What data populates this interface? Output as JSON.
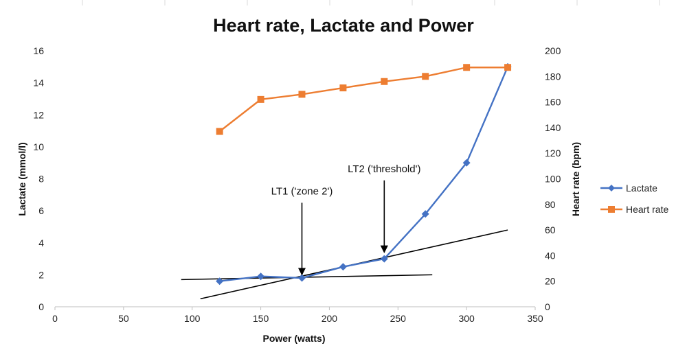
{
  "chart_data": {
    "type": "line",
    "title": "Heart rate, Lactate and Power",
    "xlabel": "Power (watts)",
    "ylabel": "Lactate (mmol/l)",
    "y2label": "Heart rate (bpm)",
    "xlim": [
      0,
      350
    ],
    "ylim": [
      0,
      16
    ],
    "y2lim": [
      0,
      200
    ],
    "x_ticks": [
      "0",
      "50",
      "100",
      "150",
      "200",
      "250",
      "300",
      "350"
    ],
    "y_ticks": [
      "0",
      "2",
      "4",
      "6",
      "8",
      "10",
      "12",
      "14",
      "16"
    ],
    "y2_ticks": [
      "0",
      "20",
      "40",
      "60",
      "80",
      "100",
      "120",
      "140",
      "160",
      "180",
      "200"
    ],
    "grid": false,
    "legend_position": "right",
    "series": [
      {
        "name": "Lactate",
        "axis": "left",
        "color": "#4472C4",
        "marker": "diamond",
        "x": [
          120,
          150,
          180,
          210,
          240,
          270,
          300,
          330
        ],
        "y": [
          1.6,
          1.9,
          1.8,
          2.5,
          3.0,
          5.8,
          9.0,
          15.0
        ]
      },
      {
        "name": "Heart rate",
        "axis": "right",
        "color": "#ED7D31",
        "marker": "square",
        "x": [
          120,
          150,
          180,
          210,
          240,
          270,
          300,
          330
        ],
        "y": [
          137,
          162,
          166,
          171,
          176,
          180,
          187,
          187
        ]
      }
    ],
    "trend_lines": [
      {
        "x": [
          92,
          275
        ],
        "y": [
          1.7,
          2.0
        ],
        "color": "#000000"
      },
      {
        "x": [
          106,
          330
        ],
        "y": [
          0.5,
          4.8
        ],
        "color": "#000000"
      }
    ],
    "annotations": [
      {
        "text": "LT1 ('zone 2')",
        "arrow_x": 180,
        "arrow_y_start": 6.5,
        "arrow_y_end": 2.0
      },
      {
        "text": "LT2 ('threshold')",
        "arrow_x": 240,
        "arrow_y_start": 7.9,
        "arrow_y_end": 3.4
      }
    ]
  }
}
